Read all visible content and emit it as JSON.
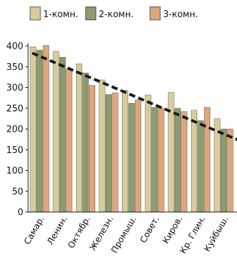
{
  "chart_data": {
    "type": "bar",
    "categories": [
      "Самар.",
      "Ленин.",
      "Октябр.",
      "Железн.",
      "Промыш.",
      "Совет.",
      "Киров.",
      "Кр. Глин.",
      "Куйбыш."
    ],
    "series": [
      {
        "name": "1-комн.",
        "color": "#d8cc9a",
        "values": [
          398,
          387,
          357,
          318,
          293,
          282,
          288,
          245,
          225
        ]
      },
      {
        "name": "2-комн.",
        "color": "#8e9b6e",
        "values": [
          390,
          373,
          335,
          283,
          262,
          252,
          250,
          220,
          200
        ]
      },
      {
        "name": "3-комн.",
        "color": "#dfa77a",
        "values": [
          401,
          343,
          305,
          287,
          270,
          250,
          242,
          252,
          200
        ]
      }
    ],
    "yticks": [
      0,
      50,
      100,
      150,
      200,
      250,
      300,
      350,
      400
    ],
    "ylim": [
      0,
      400
    ],
    "trendline": {
      "style": "dashed",
      "color": "#1a1a1a",
      "start": 383,
      "end": 173
    },
    "legend_position": "top",
    "grid": false
  }
}
